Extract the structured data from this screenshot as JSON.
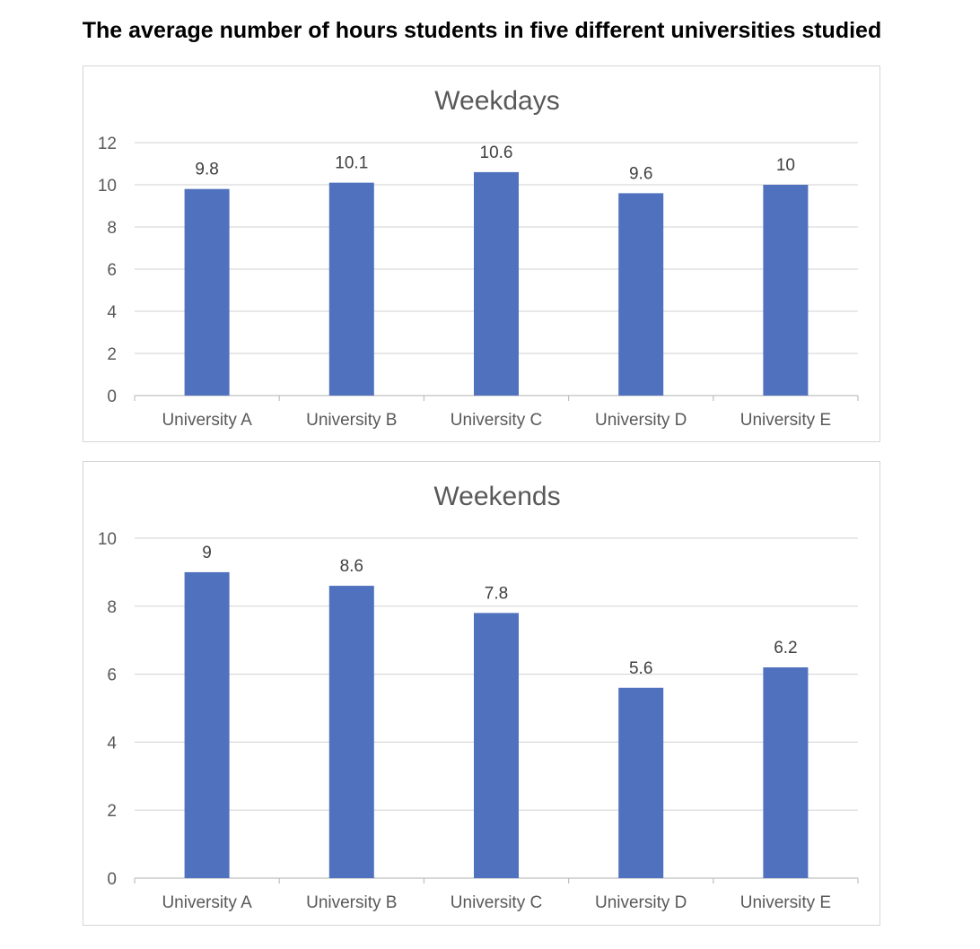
{
  "page_title": "The average number of hours students in five different universities studied",
  "colors": {
    "bar": "#4F71BE",
    "grid": "#d9d9d9",
    "text": "#595959"
  },
  "chart_data": [
    {
      "type": "bar",
      "title": "Weekdays",
      "categories": [
        "University A",
        "University B",
        "University C",
        "University D",
        "University E"
      ],
      "values": [
        9.8,
        10.1,
        10.6,
        9.6,
        10
      ],
      "ylim": [
        0,
        12
      ],
      "yticks": [
        0,
        2,
        4,
        6,
        8,
        10,
        12
      ],
      "grid": true,
      "legend": "none"
    },
    {
      "type": "bar",
      "title": "Weekends",
      "categories": [
        "University A",
        "University B",
        "University C",
        "University D",
        "University E"
      ],
      "values": [
        9,
        8.6,
        7.8,
        5.6,
        6.2
      ],
      "ylim": [
        0,
        10
      ],
      "yticks": [
        0,
        2,
        4,
        6,
        8,
        10
      ],
      "grid": true,
      "legend": "none"
    }
  ]
}
